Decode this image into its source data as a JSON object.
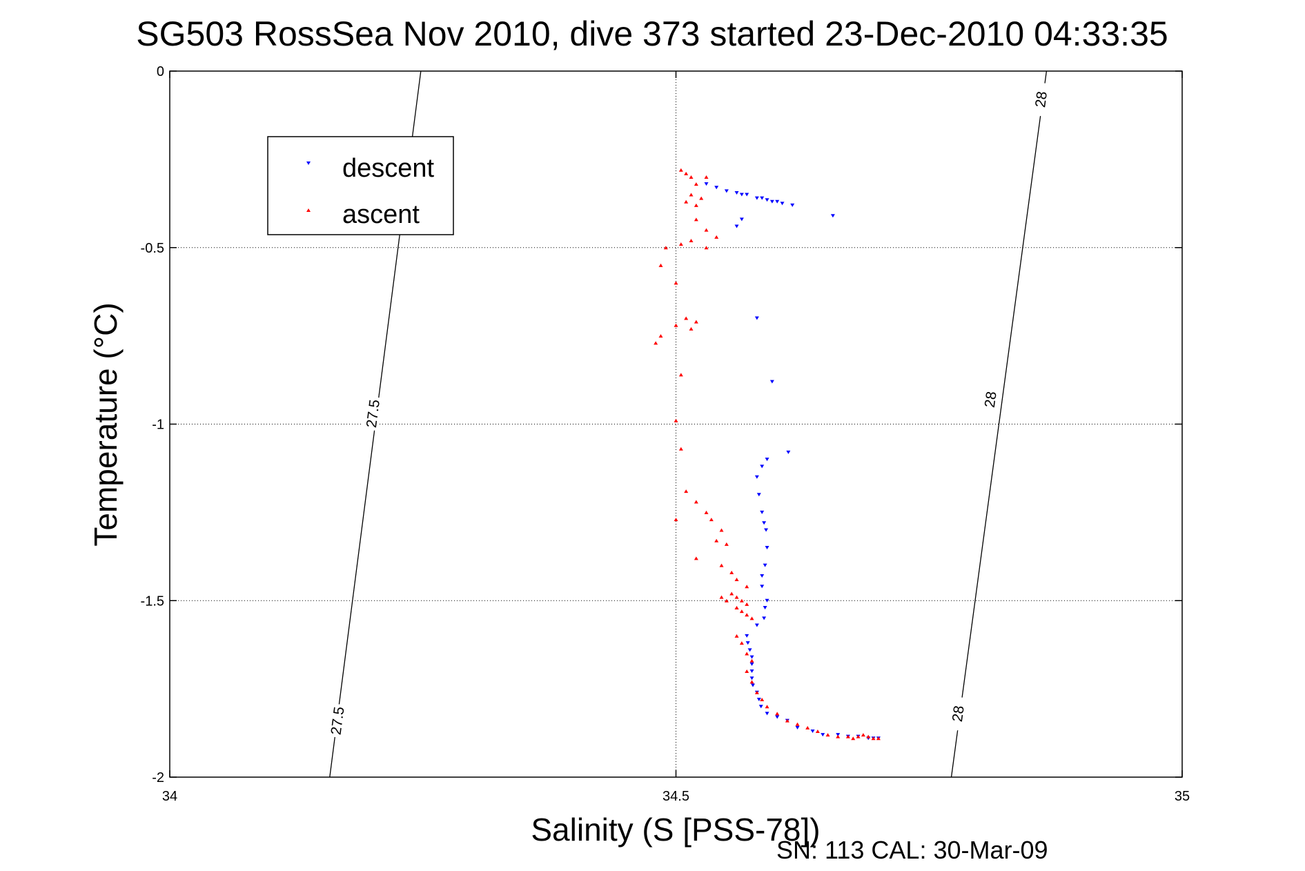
{
  "title": "SG503 RossSea Nov 2010, dive 373 started 23-Dec-2010 04:33:35",
  "footnote": "SN: 113  CAL: 30-Mar-09",
  "colors": {
    "descent": "#0000ff",
    "ascent": "#ff0000",
    "axes": "#000000",
    "grid": "#000000"
  },
  "chart_data": {
    "type": "scatter",
    "xlabel": "Salinity (S [PSS-78])",
    "ylabel": "Temperature (°C)",
    "xlim": [
      34,
      35
    ],
    "ylim": [
      -2,
      0
    ],
    "xticks": [
      34,
      34.5,
      35
    ],
    "xtick_labels": [
      "34",
      "34.5",
      "35"
    ],
    "yticks": [
      -2,
      -1.5,
      -1,
      -0.5,
      0
    ],
    "ytick_labels": [
      "-2",
      "-1.5",
      "-1",
      "-0.5",
      "0"
    ],
    "grid": true,
    "legend": {
      "position": "top-left",
      "entries": [
        "descent",
        "ascent"
      ]
    },
    "density_contours": [
      {
        "label": "27.5",
        "points": [
          [
            34.158,
            -2
          ],
          [
            34.248,
            0
          ]
        ],
        "label_positions": [
          [
            34.165,
            -1.84
          ],
          [
            34.2,
            -0.97
          ]
        ]
      },
      {
        "label": "28",
        "points": [
          [
            34.772,
            -2
          ],
          [
            34.866,
            0
          ]
        ],
        "label_positions": [
          [
            34.778,
            -1.82
          ],
          [
            34.81,
            -0.93
          ],
          [
            34.86,
            -0.08
          ]
        ]
      }
    ],
    "series": [
      {
        "name": "descent",
        "marker": "triangle-down",
        "x": [
          34.53,
          34.54,
          34.55,
          34.56,
          34.565,
          34.57,
          34.58,
          34.585,
          34.59,
          34.595,
          34.6,
          34.605,
          34.615,
          34.655,
          34.565,
          34.56,
          34.58,
          34.595,
          34.611,
          34.59,
          34.585,
          34.58,
          34.582,
          34.585,
          34.587,
          34.589,
          34.59,
          34.588,
          34.585,
          34.585,
          34.59,
          34.588,
          34.587,
          34.58,
          34.57,
          34.571,
          34.573,
          34.575,
          34.575,
          34.575,
          34.575,
          34.576,
          34.58,
          34.582,
          34.584,
          34.59,
          34.6,
          34.61,
          34.62,
          34.635,
          34.645,
          34.66,
          34.67,
          34.68,
          34.69,
          34.695,
          34.7
        ],
        "y": [
          -0.32,
          -0.33,
          -0.34,
          -0.345,
          -0.35,
          -0.35,
          -0.36,
          -0.36,
          -0.365,
          -0.37,
          -0.37,
          -0.375,
          -0.38,
          -0.41,
          -0.42,
          -0.44,
          -0.7,
          -0.88,
          -1.08,
          -1.1,
          -1.12,
          -1.15,
          -1.2,
          -1.25,
          -1.28,
          -1.3,
          -1.35,
          -1.4,
          -1.43,
          -1.46,
          -1.5,
          -1.52,
          -1.55,
          -1.57,
          -1.6,
          -1.62,
          -1.64,
          -1.66,
          -1.68,
          -1.7,
          -1.72,
          -1.74,
          -1.76,
          -1.78,
          -1.8,
          -1.82,
          -1.83,
          -1.84,
          -1.86,
          -1.87,
          -1.88,
          -1.88,
          -1.885,
          -1.885,
          -1.89,
          -1.89,
          -1.89
        ]
      },
      {
        "name": "ascent",
        "marker": "triangle-up",
        "x": [
          34.505,
          34.51,
          34.515,
          34.52,
          34.515,
          34.525,
          34.51,
          34.52,
          34.53,
          34.52,
          34.53,
          34.54,
          34.515,
          34.505,
          34.53,
          34.49,
          34.485,
          34.5,
          34.51,
          34.52,
          34.5,
          34.515,
          34.485,
          34.48,
          34.505,
          34.5,
          34.505,
          34.51,
          34.5,
          34.52,
          34.53,
          34.535,
          34.545,
          34.54,
          34.55,
          34.52,
          34.545,
          34.555,
          34.56,
          34.57,
          34.545,
          34.55,
          34.56,
          34.555,
          34.56,
          34.565,
          34.57,
          34.56,
          34.565,
          34.57,
          34.575,
          34.56,
          34.565,
          34.57,
          34.575,
          34.57,
          34.575,
          34.58,
          34.585,
          34.59,
          34.6,
          34.61,
          34.62,
          34.63,
          34.64,
          34.65,
          34.66,
          34.67,
          34.675,
          34.68,
          34.685,
          34.69,
          34.695,
          34.7
        ],
        "y": [
          -0.28,
          -0.29,
          -0.3,
          -0.32,
          -0.35,
          -0.36,
          -0.37,
          -0.38,
          -0.3,
          -0.42,
          -0.45,
          -0.47,
          -0.48,
          -0.49,
          -0.5,
          -0.5,
          -0.55,
          -0.6,
          -0.7,
          -0.71,
          -0.72,
          -0.73,
          -0.75,
          -0.77,
          -0.86,
          -0.99,
          -1.07,
          -1.19,
          -1.27,
          -1.22,
          -1.25,
          -1.27,
          -1.3,
          -1.33,
          -1.34,
          -1.38,
          -1.4,
          -1.42,
          -1.44,
          -1.46,
          -1.49,
          -1.5,
          -1.52,
          -1.48,
          -1.49,
          -1.5,
          -1.51,
          -1.52,
          -1.53,
          -1.54,
          -1.55,
          -1.6,
          -1.62,
          -1.65,
          -1.67,
          -1.7,
          -1.73,
          -1.76,
          -1.78,
          -1.8,
          -1.82,
          -1.84,
          -1.85,
          -1.86,
          -1.87,
          -1.88,
          -1.885,
          -1.885,
          -1.89,
          -1.885,
          -1.88,
          -1.885,
          -1.89,
          -1.89
        ]
      }
    ]
  }
}
